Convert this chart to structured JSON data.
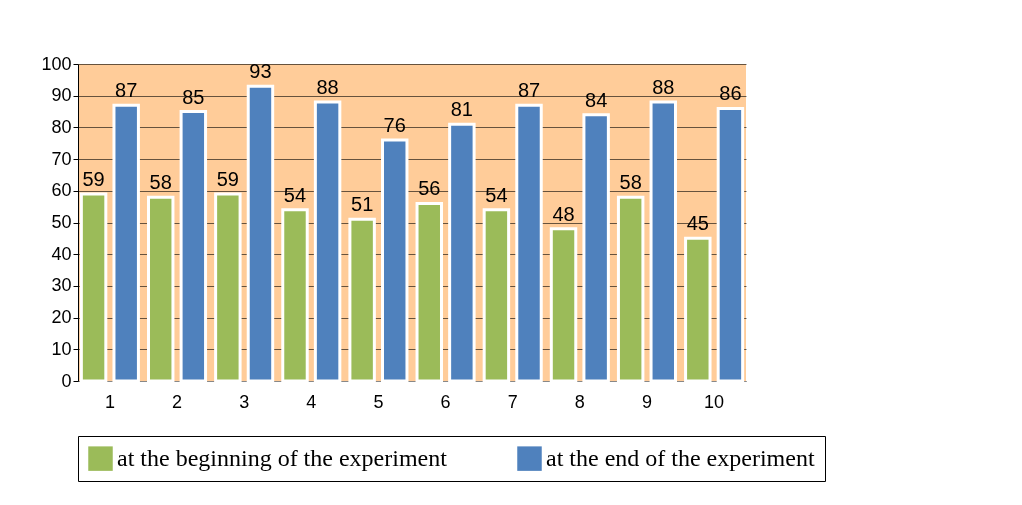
{
  "chart_data": {
    "type": "bar",
    "categories": [
      "1",
      "2",
      "3",
      "4",
      "5",
      "6",
      "7",
      "8",
      "9",
      "10"
    ],
    "series": [
      {
        "name": "at the beginning of the experiment",
        "color": "#9bbb59",
        "values": [
          59,
          58,
          59,
          54,
          51,
          56,
          54,
          48,
          58,
          45
        ]
      },
      {
        "name": "at the end of the experiment",
        "color": "#4f81bd",
        "values": [
          87,
          85,
          93,
          88,
          76,
          81,
          87,
          84,
          88,
          86
        ]
      }
    ],
    "ylim": [
      0,
      100
    ],
    "yticks": [
      0,
      10,
      20,
      30,
      40,
      50,
      60,
      70,
      80,
      90,
      100
    ],
    "grid": "y",
    "legend": "bottom",
    "data_labels": true
  }
}
